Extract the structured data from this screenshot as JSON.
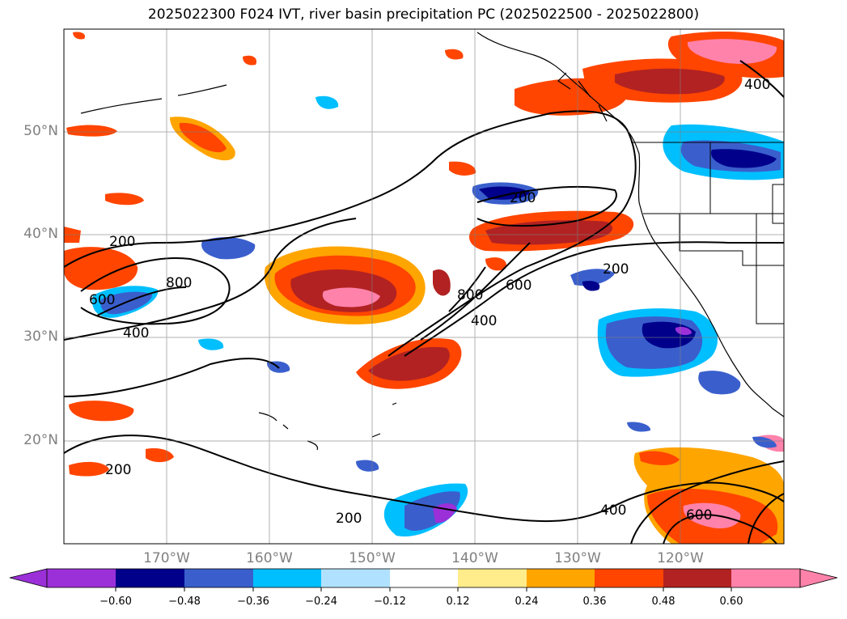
{
  "title": "2025022300 F024 IVT, river basin precipitation PC (2025022500 - 2025022800)",
  "map": {
    "lat_labels": [
      "50°N",
      "40°N",
      "30°N",
      "20°N"
    ],
    "lon_labels": [
      "170°W",
      "160°W",
      "150°W",
      "140°W",
      "130°W",
      "120°W"
    ],
    "ivt_contour_labels": [
      "200",
      "200",
      "200",
      "200",
      "200",
      "400",
      "400",
      "400",
      "400",
      "600",
      "600",
      "600",
      "800",
      "800"
    ],
    "gridlines": true,
    "coastline": true
  },
  "colorbar": {
    "tick_labels": [
      "−0.60",
      "−0.48",
      "−0.36",
      "−0.24",
      "−0.12",
      "0.12",
      "0.24",
      "0.36",
      "0.48",
      "0.60"
    ],
    "colors": [
      "#9b30d9",
      "#00008b",
      "#3a5fcd",
      "#00bfff",
      "#b0e2ff",
      "#ffffff",
      "#ffec8b",
      "#ffa500",
      "#ff4500",
      "#b22222",
      "#ff82ab"
    ],
    "extend": "both"
  }
}
